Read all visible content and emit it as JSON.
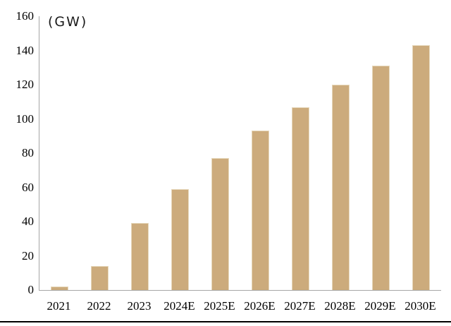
{
  "chart_data": {
    "type": "bar",
    "title": "(GW)",
    "xlabel": "",
    "ylabel": "(GW)",
    "categories": [
      "2021",
      "2022",
      "2023",
      "2024E",
      "2025E",
      "2026E",
      "2027E",
      "2028E",
      "2029E",
      "2030E"
    ],
    "values": [
      2,
      14,
      39,
      59,
      77,
      93,
      107,
      120,
      131,
      143
    ],
    "ylim": [
      0,
      160
    ],
    "yticks": [
      0,
      20,
      40,
      60,
      80,
      100,
      120,
      140,
      160
    ],
    "grid": false,
    "legend": "none",
    "bar_color": "#ccab7c",
    "bar_border_color": "#e7d9bd",
    "axis_color": "#a6a6a6",
    "text_color": "#000000",
    "bottom_rule_color": "#000000"
  }
}
